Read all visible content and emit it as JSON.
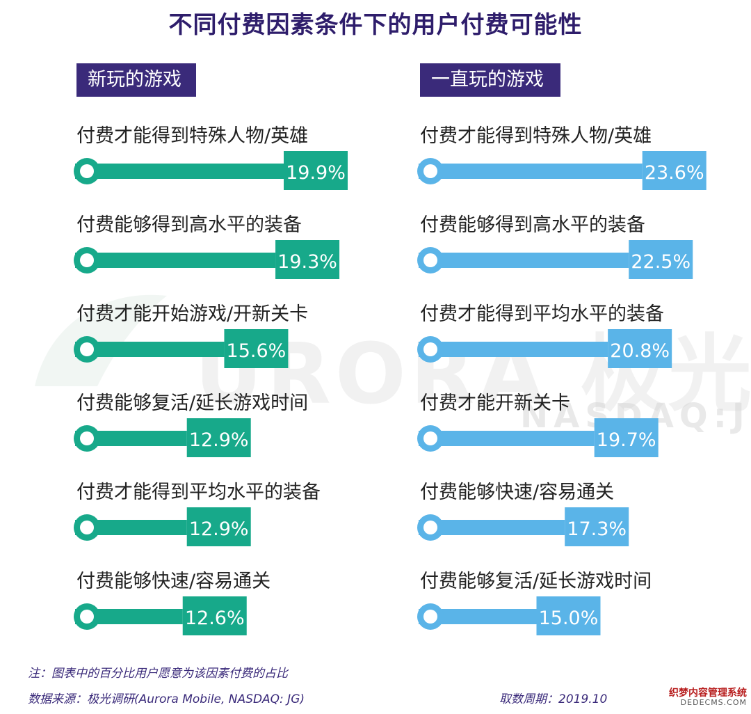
{
  "title": "不同付费因素条件下的用户付费可能性",
  "chart_data": [
    {
      "type": "bar",
      "title": "新玩的游戏",
      "categories": [
        "付费才能得到特殊人物/英雄",
        "付费能够得到高水平的装备",
        "付费才能开始游戏/开新关卡",
        "付费能够复活/延长游戏时间",
        "付费才能得到平均水平的装备",
        "付费能够快速/容易通关"
      ],
      "values": [
        19.9,
        19.3,
        15.6,
        12.9,
        12.9,
        12.6
      ],
      "labels": [
        "19.9%",
        "19.3%",
        "15.6%",
        "12.9%",
        "12.9%",
        "12.6%"
      ],
      "color": "#17a98a"
    },
    {
      "type": "bar",
      "title": "一直玩的游戏",
      "categories": [
        "付费才能得到特殊人物/英雄",
        "付费能够得到高水平的装备",
        "付费才能得到平均水平的装备",
        "付费才能开新关卡",
        "付费能够快速/容易通关",
        "付费能够复活/延长游戏时间"
      ],
      "values": [
        23.6,
        22.5,
        20.8,
        19.7,
        17.3,
        15.0
      ],
      "labels": [
        "23.6%",
        "22.5%",
        "20.8%",
        "19.7%",
        "17.3%",
        "15.0%"
      ],
      "color": "#5ab4e8"
    }
  ],
  "notes": {
    "note": "注：图表中的百分比用户愿意为该因素付费的占比",
    "source": "数据来源：极光调研(Aurora Mobile, NASDAQ: JG)",
    "period": "取数周期：2019.10"
  },
  "watermark": {
    "main": "URORA 极光",
    "sub": "NASDAQ:JG"
  },
  "corner": {
    "line1": "织梦内容管理系统",
    "line2": "DEDECMS.COM"
  }
}
